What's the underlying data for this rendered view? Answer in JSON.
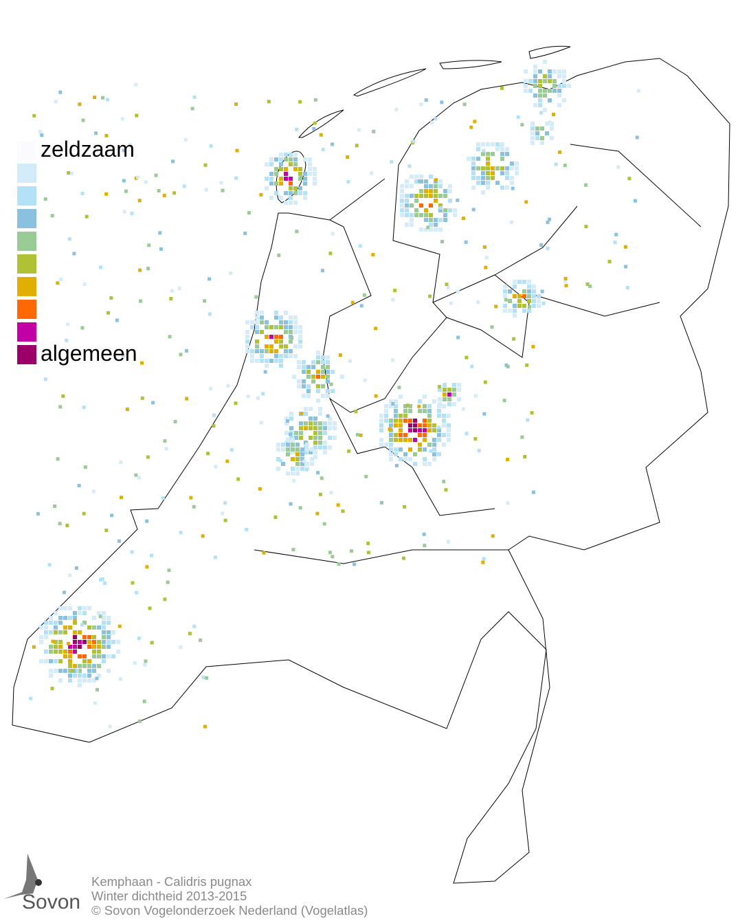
{
  "legend": {
    "items": [
      {
        "label": "zeldzaam",
        "color": "#fbfbff"
      },
      {
        "label": "",
        "color": "#d4ecfa"
      },
      {
        "label": "",
        "color": "#b3e2f8"
      },
      {
        "label": "",
        "color": "#8ac1df"
      },
      {
        "label": "",
        "color": "#9acb97"
      },
      {
        "label": "",
        "color": "#b1c136"
      },
      {
        "label": "",
        "color": "#e1af03"
      },
      {
        "label": "",
        "color": "#ff6802"
      },
      {
        "label": "",
        "color": "#c200a5"
      },
      {
        "label": "algemeen",
        "color": "#9a0067"
      }
    ]
  },
  "footer": {
    "species": "Kemphaan - Calidris pugnax",
    "subtitle": "Winter dichtheid 2013-2015",
    "copyright": "© Sovon Vogelonderzoek Nederland (Vogelatlas)"
  },
  "logo": {
    "text": "Sovon"
  }
}
